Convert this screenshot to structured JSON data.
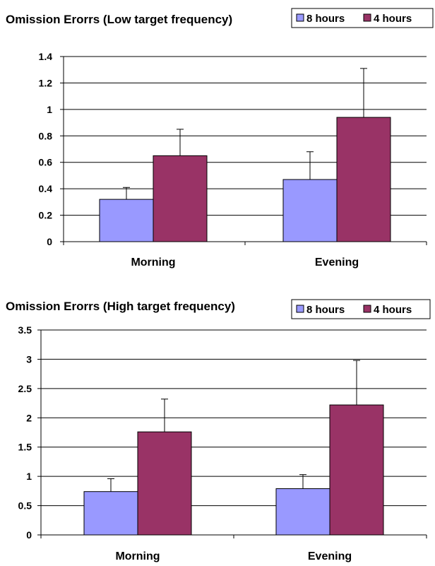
{
  "chart_data": [
    {
      "type": "bar",
      "title": "Omission Erorrs (Low target frequency)",
      "categories": [
        "Morning",
        "Evening"
      ],
      "series": [
        {
          "name": "8 hours",
          "values": [
            0.32,
            0.47
          ],
          "errors": [
            0.09,
            0.21
          ],
          "color": "#9999ff"
        },
        {
          "name": "4 hours",
          "values": [
            0.65,
            0.94
          ],
          "errors": [
            0.2,
            0.37
          ],
          "color": "#993366"
        }
      ],
      "ylim": [
        0,
        1.4
      ],
      "yticks": [
        "0",
        "0.2",
        "0.4",
        "0.6",
        "0.8",
        "1",
        "1.2",
        "1.4"
      ],
      "xlabel": "",
      "ylabel": "",
      "grid": true,
      "legend": "top-right"
    },
    {
      "type": "bar",
      "title": "Omission Erorrs (High target frequency)",
      "categories": [
        "Morning",
        "Evening"
      ],
      "series": [
        {
          "name": "8 hours",
          "values": [
            0.74,
            0.79
          ],
          "errors": [
            0.22,
            0.24
          ],
          "color": "#9999ff"
        },
        {
          "name": "4 hours",
          "values": [
            1.76,
            2.22
          ],
          "errors": [
            0.56,
            0.76
          ],
          "color": "#993366"
        }
      ],
      "ylim": [
        0,
        3.5
      ],
      "yticks": [
        "0",
        "0.5",
        "1",
        "1.5",
        "2",
        "2.5",
        "3",
        "3.5"
      ],
      "xlabel": "",
      "ylabel": "",
      "grid": true,
      "legend": "top-right"
    }
  ]
}
